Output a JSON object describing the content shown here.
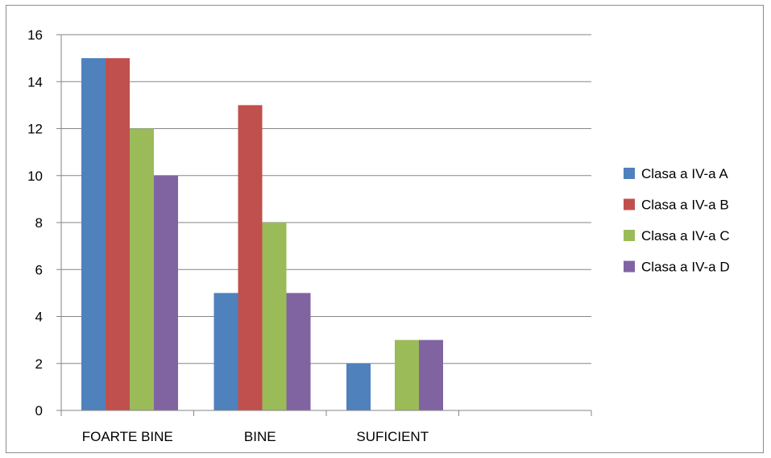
{
  "chart_data": {
    "type": "bar",
    "categories": [
      "FOARTE BINE",
      "BINE",
      "SUFICIENT",
      ""
    ],
    "series": [
      {
        "name": "Clasa a IV-a A",
        "color": "#4F81BD",
        "values": [
          15,
          5,
          2,
          null
        ]
      },
      {
        "name": "Clasa a IV-a B",
        "color": "#C0504D",
        "values": [
          15,
          13,
          null,
          null
        ]
      },
      {
        "name": "Clasa a IV-a C",
        "color": "#9BBB59",
        "values": [
          12,
          8,
          3,
          null
        ]
      },
      {
        "name": "Clasa a IV-a D",
        "color": "#8064A2",
        "values": [
          10,
          5,
          3,
          null
        ]
      }
    ],
    "title": "",
    "xlabel": "",
    "ylabel": "",
    "ylim": [
      0,
      16
    ],
    "yticks": [
      0,
      2,
      4,
      6,
      8,
      10,
      12,
      14,
      16
    ],
    "grid": true,
    "legend_position": "right"
  }
}
